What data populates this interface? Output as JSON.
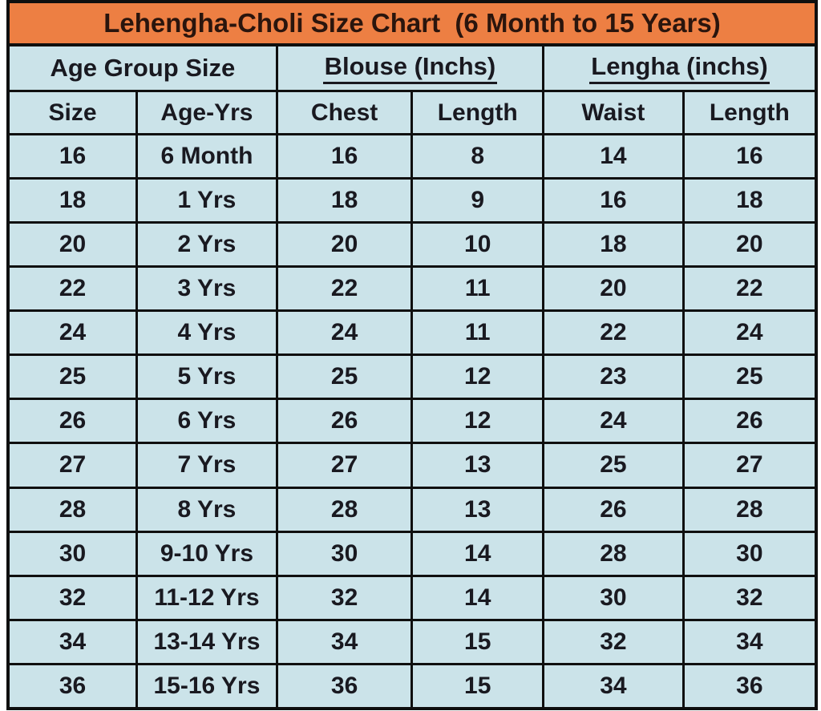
{
  "title": "Lehengha-Choli Size Chart  (6 Month to 15 Years)",
  "colors": {
    "title_background": "#ed7f43",
    "cell_background": "#cbe3e9",
    "grid_border": "#0f0f0f",
    "title_text": "#2a150d",
    "cell_text": "#191920"
  },
  "chart_data": {
    "type": "table",
    "title": "Lehengha-Choli Size Chart  (6 Month to 15 Years)",
    "column_groups": [
      {
        "label": "Age Group Size",
        "underlined": false,
        "span": 2
      },
      {
        "label": "Blouse (Inchs)",
        "underlined": true,
        "span": 2
      },
      {
        "label": "Lengha (inchs)",
        "underlined": true,
        "span": 2
      }
    ],
    "columns": [
      "Size",
      "Age-Yrs",
      "Chest",
      "Length",
      "Waist",
      "Length"
    ],
    "rows": [
      [
        "16",
        "6 Month",
        "16",
        "8",
        "14",
        "16"
      ],
      [
        "18",
        "1 Yrs",
        "18",
        "9",
        "16",
        "18"
      ],
      [
        "20",
        "2 Yrs",
        "20",
        "10",
        "18",
        "20"
      ],
      [
        "22",
        "3 Yrs",
        "22",
        "11",
        "20",
        "22"
      ],
      [
        "24",
        "4 Yrs",
        "24",
        "11",
        "22",
        "24"
      ],
      [
        "25",
        "5 Yrs",
        "25",
        "12",
        "23",
        "25"
      ],
      [
        "26",
        "6 Yrs",
        "26",
        "12",
        "24",
        "26"
      ],
      [
        "27",
        "7 Yrs",
        "27",
        "13",
        "25",
        "27"
      ],
      [
        "28",
        "8 Yrs",
        "28",
        "13",
        "26",
        "28"
      ],
      [
        "30",
        "9-10 Yrs",
        "30",
        "14",
        "28",
        "30"
      ],
      [
        "32",
        "11-12 Yrs",
        "32",
        "14",
        "30",
        "32"
      ],
      [
        "34",
        "13-14 Yrs",
        "34",
        "15",
        "32",
        "34"
      ],
      [
        "36",
        "15-16 Yrs",
        "36",
        "15",
        "34",
        "36"
      ]
    ]
  }
}
